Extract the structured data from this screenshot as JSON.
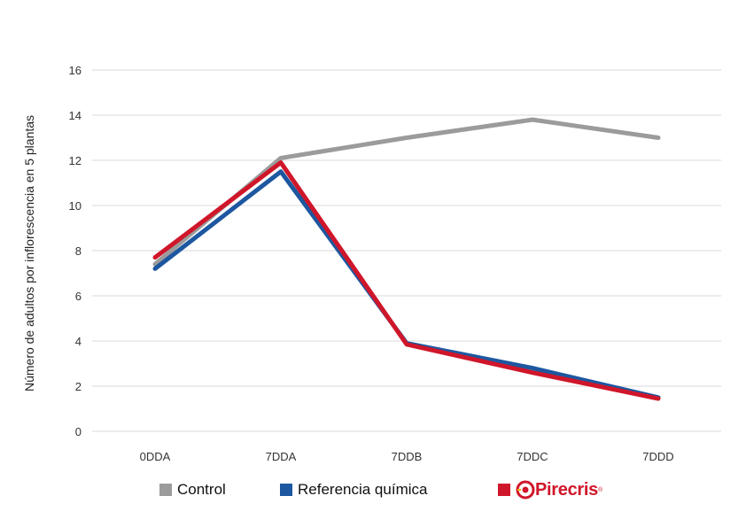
{
  "chart_data": {
    "type": "line",
    "categories": [
      "0DDA",
      "7DDA",
      "7DDB",
      "7DDC",
      "7DDD"
    ],
    "ylabel": "Número de adultos por inflorescencia en 5 plantas",
    "xlabel": "",
    "ylim": [
      0,
      16
    ],
    "yticks": [
      "0",
      "2",
      "4",
      "6",
      "8",
      "10",
      "12",
      "14",
      "16"
    ],
    "grid": true,
    "legend_position": "bottom",
    "series": [
      {
        "name": "Control",
        "color": "#9b9b9b",
        "values": [
          7.4,
          12.1,
          13.0,
          13.8,
          13.0
        ]
      },
      {
        "name": "Referencia química",
        "color": "#1d57a0",
        "values": [
          7.2,
          11.5,
          3.9,
          2.8,
          1.5
        ]
      },
      {
        "name": "Pirecris",
        "color": "#d0162a",
        "values": [
          7.7,
          11.9,
          3.85,
          2.6,
          1.45
        ]
      }
    ]
  },
  "legend": {
    "control_label": "Control",
    "referencia_label": "Referencia química",
    "pirecris_logo_text": "Pirecris",
    "pirecris_reg": "®"
  }
}
